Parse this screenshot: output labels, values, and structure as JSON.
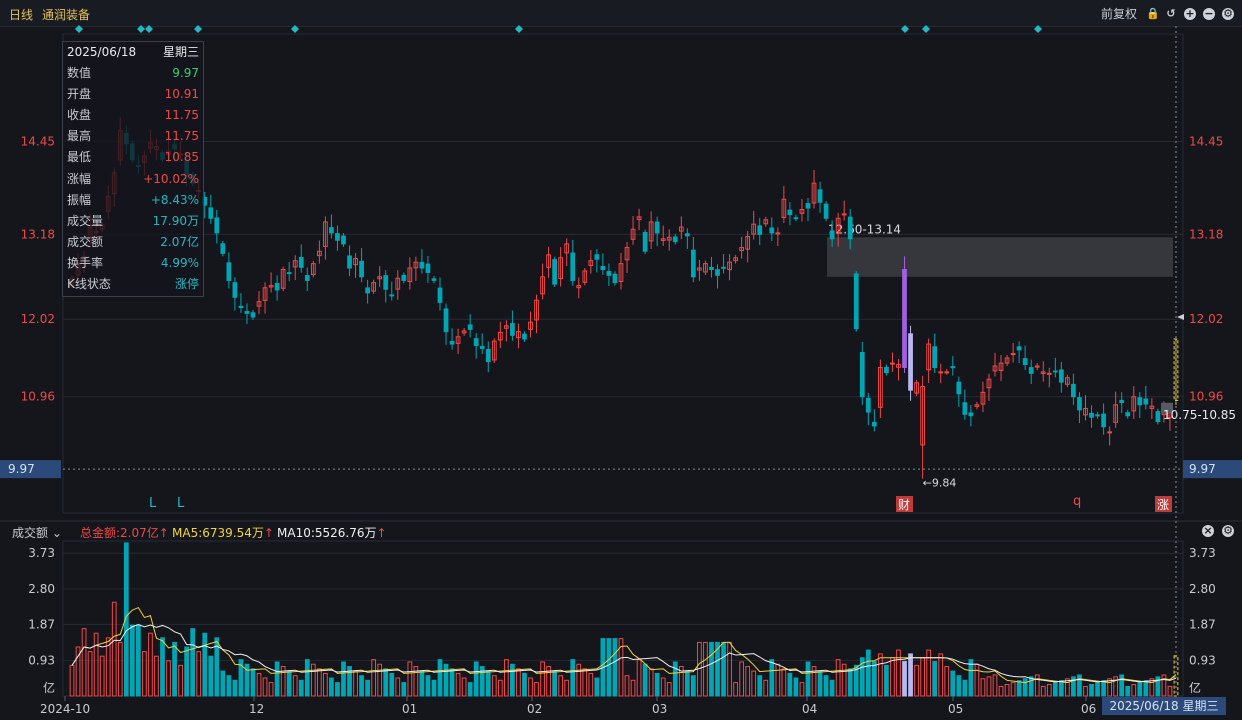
{
  "header": {
    "period": "日线",
    "stock_name": "通润装备",
    "adjust": "前复权",
    "icons": [
      "lock-icon",
      "undo-icon",
      "zoom-in-icon",
      "zoom-out-icon",
      "settings-icon"
    ]
  },
  "info_panel": {
    "date": "2025/06/18",
    "weekday": "星期三",
    "rows": [
      {
        "label": "数值",
        "value": "9.97",
        "color": "#3ccf6a"
      },
      {
        "label": "开盘",
        "value": "10.91",
        "color": "#f04848"
      },
      {
        "label": "收盘",
        "value": "11.75",
        "color": "#f04848"
      },
      {
        "label": "最高",
        "value": "11.75",
        "color": "#f04848"
      },
      {
        "label": "最低",
        "value": "10.85",
        "color": "#f04848"
      },
      {
        "label": "涨幅",
        "value": "+10.02%",
        "color": "#f04848"
      },
      {
        "label": "振幅",
        "value": "+8.43%",
        "color": "#25b8c4"
      },
      {
        "label": "成交量",
        "value": "17.90万",
        "color": "#25b8c4"
      },
      {
        "label": "成交额",
        "value": "2.07亿",
        "color": "#25b8c4"
      },
      {
        "label": "换手率",
        "value": "4.99%",
        "color": "#25b8c4"
      },
      {
        "label": "K线状态",
        "value": "涨停",
        "color": "#25b8c4"
      }
    ]
  },
  "volume_header": {
    "label": "成交额",
    "total": "总金额:2.07亿",
    "ma5": "MA5:6739.54万",
    "ma10": "MA10:5526.76万"
  },
  "cursor_date": "2025/06/18 星期三",
  "colors": {
    "up": "#f04848",
    "down": "#00a6b4",
    "ma5": "#f2d33b",
    "ma10": "#f0f0f0",
    "grid": "#262a33"
  },
  "chart_data": [
    {
      "type": "candlestick",
      "ylabel_ticks": [
        "14.45",
        "13.18",
        "12.02",
        "10.96",
        "9.97"
      ],
      "y_ticks": [
        14.45,
        13.18,
        12.02,
        10.96
      ],
      "ylim": [
        9.37,
        15.92
      ],
      "crosshair_value": "9.97",
      "x_ticks": [
        "2024-10",
        "12",
        "01",
        "02",
        "03",
        "04",
        "05",
        "06"
      ],
      "annotations": {
        "gap_zone": "12.60-13.14",
        "low_marker": "9.84",
        "recent_range": "10.75-10.85",
        "markers": [
          "L",
          "L",
          "财",
          "q",
          "涨"
        ]
      },
      "closes": [
        12.58,
        12.78,
        12.88,
        13.28,
        13.22,
        13.31,
        13.7,
        14.02,
        14.6,
        14.42,
        14.2,
        14.12,
        14.25,
        14.43,
        14.38,
        14.21,
        14.32,
        14.35,
        14.28,
        13.98,
        13.88,
        13.78,
        13.58,
        13.4,
        13.2,
        12.92,
        12.55,
        12.32,
        12.18,
        12.1,
        12.05,
        12.26,
        12.45,
        12.48,
        12.42,
        12.7,
        12.65,
        12.82,
        12.73,
        12.55,
        12.78,
        12.95,
        13.35,
        13.2,
        13.1,
        13.05,
        12.72,
        12.85,
        12.6,
        12.38,
        12.52,
        12.6,
        12.43,
        12.35,
        12.58,
        12.55,
        12.72,
        12.8,
        12.72,
        12.66,
        12.55,
        12.25,
        11.85,
        11.68,
        11.78,
        11.86,
        11.88,
        11.66,
        11.62,
        11.44,
        11.72,
        11.84,
        11.93,
        11.8,
        11.85,
        11.75,
        11.98,
        12.28,
        12.6,
        12.9,
        12.5,
        12.86,
        13.05,
        12.55,
        12.48,
        12.68,
        12.82,
        12.84,
        12.7,
        12.62,
        12.52,
        12.78,
        13.0,
        13.25,
        13.42,
        12.95,
        13.35,
        13.2,
        13.12,
        13.14,
        13.08,
        13.28,
        13.16,
        12.6,
        12.72,
        12.78,
        12.7,
        12.62,
        12.72,
        12.8,
        12.86,
        13.0,
        13.15,
        13.32,
        13.18,
        13.38,
        13.2,
        13.2,
        13.66,
        13.45,
        13.4,
        13.52,
        13.54,
        13.88,
        13.62,
        13.4,
        13.12,
        13.4,
        13.46,
        13.12,
        11.89,
        10.96,
        10.75,
        10.56,
        11.36,
        11.29,
        11.42,
        11.4,
        11.36,
        11.05,
        11.15,
        11.1,
        11.68,
        11.36,
        11.3,
        11.3,
        11.36,
        11.0,
        10.72,
        10.7,
        10.85,
        11.02,
        11.2,
        11.38,
        11.42,
        11.49,
        11.55,
        11.6,
        11.4,
        11.28,
        11.38,
        11.3,
        11.28,
        11.3,
        11.16,
        11.22,
        10.96,
        10.78,
        10.8,
        10.68,
        10.7,
        10.55,
        10.48,
        10.85,
        10.88,
        10.7,
        10.96,
        10.85,
        10.86,
        10.83,
        10.62,
        10.75,
        10.75,
        11.75
      ],
      "volume_ylabel_ticks": [
        "3.73",
        "2.80",
        "1.87",
        "0.93",
        "亿"
      ],
      "volume_ylim": [
        0,
        4.05
      ]
    }
  ]
}
